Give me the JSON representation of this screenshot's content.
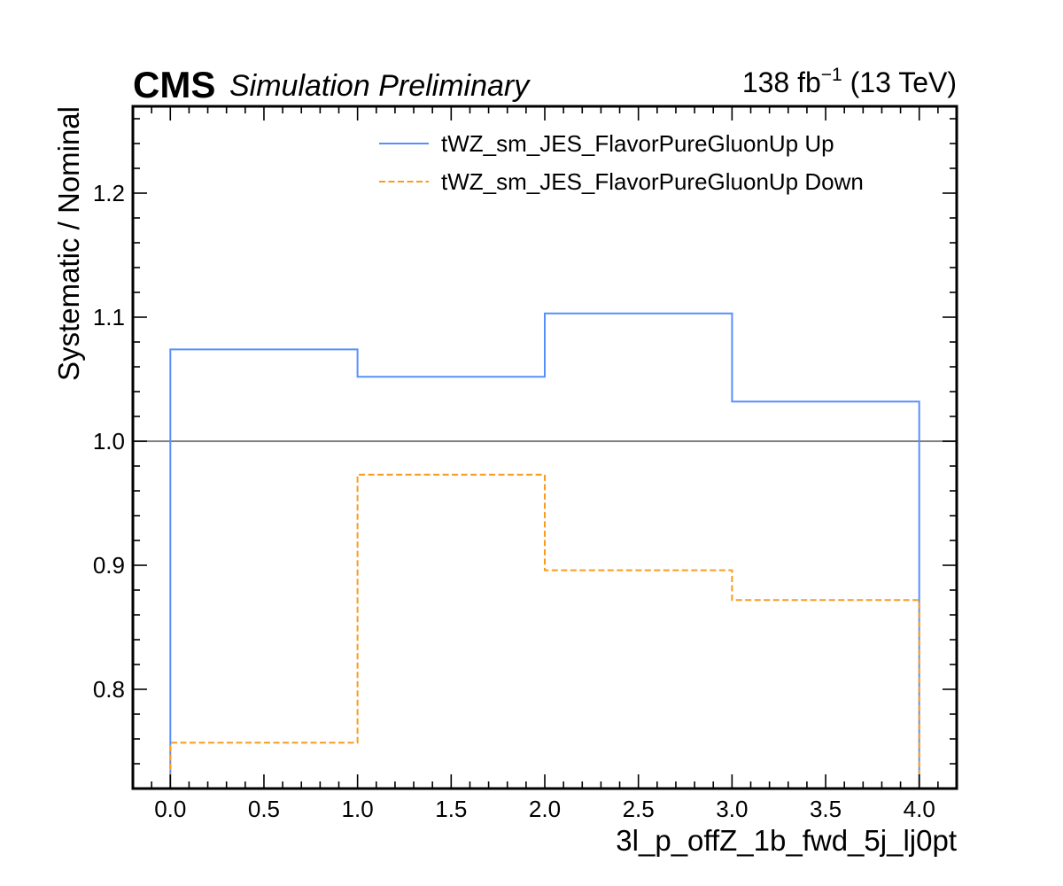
{
  "header": {
    "experiment": "CMS",
    "status": "Simulation Preliminary",
    "lumi_value": "138 fb",
    "lumi_exp": "−1",
    "lumi_energy": " (13 TeV)"
  },
  "chart_data": {
    "type": "line",
    "drawstyle": "steps",
    "xlabel": "3l_p_offZ_1b_fwd_5j_lj0pt",
    "ylabel": "Systematic / Nominal",
    "xlim": [
      -0.2,
      4.2
    ],
    "ylim": [
      0.72,
      1.27
    ],
    "x_edges": [
      0,
      1,
      2,
      3,
      4
    ],
    "xticks": [
      0.0,
      0.5,
      1.0,
      1.5,
      2.0,
      2.5,
      3.0,
      3.5,
      4.0
    ],
    "xtick_labels": [
      "0.0",
      "0.5",
      "1.0",
      "1.5",
      "2.0",
      "2.5",
      "3.0",
      "3.5",
      "4.0"
    ],
    "yticks": [
      0.8,
      0.9,
      1.0,
      1.1,
      1.2
    ],
    "ytick_labels": [
      "0.8",
      "0.9",
      "1.0",
      "1.1",
      "1.2"
    ],
    "reference_line": 1.0,
    "grid": false,
    "legend_position": "top-right",
    "series": [
      {
        "name": "tWZ_sm_JES_FlavorPureGluonUp Up",
        "values": [
          1.074,
          1.052,
          1.103,
          1.032
        ],
        "color": "#5790fc",
        "style": "solid"
      },
      {
        "name": "tWZ_sm_JES_FlavorPureGluonUp Down",
        "values": [
          0.757,
          0.973,
          0.896,
          0.872
        ],
        "color": "#f89c20",
        "style": "dashed"
      }
    ],
    "reference_color": "#808080"
  }
}
